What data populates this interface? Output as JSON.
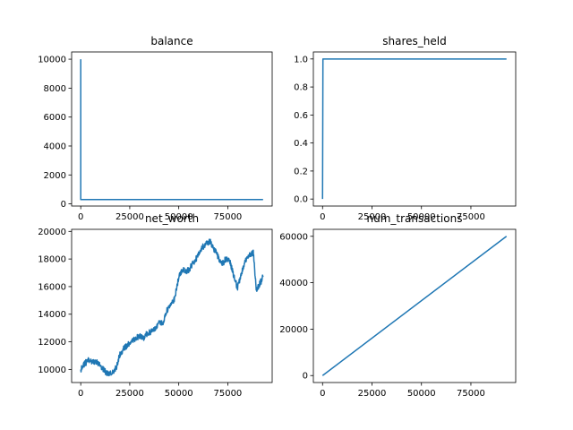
{
  "chart_data": [
    {
      "type": "line",
      "title": "balance",
      "xlabel": "",
      "ylabel": "",
      "xlim": [
        -4650,
        97650
      ],
      "ylim": [
        -150,
        10500
      ],
      "xticks": [
        0,
        25000,
        50000,
        75000
      ],
      "xtick_labels": [
        "0",
        "25000",
        "50000",
        "75000"
      ],
      "yticks": [
        0,
        2000,
        4000,
        6000,
        8000,
        10000
      ],
      "ytick_labels": [
        "0",
        "2000",
        "4000",
        "6000",
        "8000",
        "10000"
      ],
      "grid": false,
      "series": [
        {
          "color": "#1f77b4",
          "points": [
            [
              0,
              10000
            ],
            [
              0,
              300
            ],
            [
              93000,
              300
            ]
          ]
        }
      ]
    },
    {
      "type": "line",
      "title": "shares_held",
      "xlabel": "",
      "ylabel": "",
      "xlim": [
        -4650,
        97650
      ],
      "ylim": [
        -0.05,
        1.05
      ],
      "xticks": [
        0,
        25000,
        50000,
        75000
      ],
      "xtick_labels": [
        "0",
        "25000",
        "50000",
        "75000"
      ],
      "yticks": [
        0,
        0.2,
        0.4,
        0.6,
        0.8,
        1.0
      ],
      "ytick_labels": [
        "0.0",
        "0.2",
        "0.4",
        "0.6",
        "0.8",
        "1.0"
      ],
      "grid": false,
      "series": [
        {
          "color": "#1f77b4",
          "points": [
            [
              0,
              0
            ],
            [
              200,
              1
            ],
            [
              93000,
              1
            ]
          ]
        }
      ]
    },
    {
      "type": "line",
      "title": "net_worth",
      "xlabel": "",
      "ylabel": "",
      "xlim": [
        -4650,
        97650
      ],
      "ylim": [
        9050,
        20150
      ],
      "xticks": [
        0,
        25000,
        50000,
        75000
      ],
      "xtick_labels": [
        "0",
        "25000",
        "50000",
        "75000"
      ],
      "yticks": [
        10000,
        12000,
        14000,
        16000,
        18000,
        20000
      ],
      "ytick_labels": [
        "10000",
        "12000",
        "14000",
        "16000",
        "18000",
        "20000"
      ],
      "grid": false,
      "series": [
        {
          "color": "#1f77b4",
          "noisy": true,
          "noise_amplitude": 220,
          "points": [
            [
              0,
              10000
            ],
            [
              2000,
              10400
            ],
            [
              4000,
              10700
            ],
            [
              6000,
              10550
            ],
            [
              8000,
              10600
            ],
            [
              10000,
              10300
            ],
            [
              12000,
              9950
            ],
            [
              14000,
              9600
            ],
            [
              16000,
              9750
            ],
            [
              18000,
              10100
            ],
            [
              20000,
              11100
            ],
            [
              22000,
              11500
            ],
            [
              24000,
              11800
            ],
            [
              26000,
              12000
            ],
            [
              28000,
              12300
            ],
            [
              30000,
              12400
            ],
            [
              32000,
              12250
            ],
            [
              34000,
              12650
            ],
            [
              36000,
              12700
            ],
            [
              38000,
              13000
            ],
            [
              40000,
              13350
            ],
            [
              42000,
              13450
            ],
            [
              44000,
              14300
            ],
            [
              46000,
              14650
            ],
            [
              48000,
              15200
            ],
            [
              50000,
              16700
            ],
            [
              52000,
              17200
            ],
            [
              54000,
              17050
            ],
            [
              56000,
              17400
            ],
            [
              58000,
              17800
            ],
            [
              60000,
              18300
            ],
            [
              62000,
              18850
            ],
            [
              64000,
              19100
            ],
            [
              66000,
              19250
            ],
            [
              68000,
              18700
            ],
            [
              70000,
              18200
            ],
            [
              72000,
              17600
            ],
            [
              74000,
              18000
            ],
            [
              76000,
              17900
            ],
            [
              78000,
              16800
            ],
            [
              80000,
              15900
            ],
            [
              82000,
              17000
            ],
            [
              84000,
              17900
            ],
            [
              86000,
              18300
            ],
            [
              88000,
              18500
            ],
            [
              89500,
              15800
            ],
            [
              91000,
              16100
            ],
            [
              93000,
              16700
            ]
          ]
        }
      ]
    },
    {
      "type": "line",
      "title": "num_transactions",
      "xlabel": "",
      "ylabel": "",
      "xlim": [
        -4650,
        97650
      ],
      "ylim": [
        -3000,
        63000
      ],
      "xticks": [
        0,
        25000,
        50000,
        75000
      ],
      "xtick_labels": [
        "0",
        "25000",
        "50000",
        "75000"
      ],
      "yticks": [
        0,
        20000,
        40000,
        60000
      ],
      "ytick_labels": [
        "0",
        "20000",
        "40000",
        "60000"
      ],
      "grid": false,
      "series": [
        {
          "color": "#1f77b4",
          "points": [
            [
              0,
              0
            ],
            [
              93000,
              60000
            ]
          ]
        }
      ]
    }
  ]
}
